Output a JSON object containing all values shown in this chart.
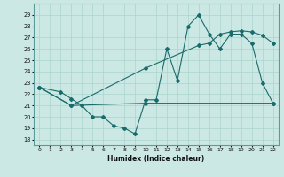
{
  "xlabel": "Humidex (Indice chaleur)",
  "xlim": [
    -0.5,
    22.5
  ],
  "ylim": [
    17.5,
    30
  ],
  "yticks": [
    18,
    19,
    20,
    21,
    22,
    23,
    24,
    25,
    26,
    27,
    28,
    29
  ],
  "xticks": [
    0,
    1,
    2,
    3,
    4,
    5,
    6,
    7,
    8,
    9,
    10,
    11,
    12,
    13,
    14,
    15,
    16,
    17,
    18,
    19,
    20,
    21,
    22
  ],
  "bg_color": "#cce8e4",
  "grid_color": "#aad4ce",
  "line_color": "#1a6b6b",
  "line1_x": [
    0,
    2,
    3,
    4,
    5,
    6,
    7,
    8,
    9,
    10,
    11,
    12,
    13,
    14,
    15,
    16,
    17,
    18,
    19,
    20,
    21,
    22
  ],
  "line1_y": [
    22.6,
    22.2,
    21.6,
    21.0,
    20.0,
    20.0,
    19.2,
    19.0,
    18.5,
    21.5,
    21.5,
    26.0,
    23.2,
    28.0,
    29.0,
    27.3,
    26.0,
    27.3,
    27.3,
    26.5,
    23.0,
    21.2
  ],
  "line2_x": [
    0,
    3,
    10,
    22
  ],
  "line2_y": [
    22.6,
    21.0,
    21.2,
    21.2
  ],
  "line3_x": [
    0,
    3,
    10,
    15,
    16,
    17,
    18,
    19,
    20,
    21,
    22
  ],
  "line3_y": [
    22.6,
    21.0,
    24.3,
    26.3,
    26.5,
    27.3,
    27.5,
    27.6,
    27.5,
    27.2,
    26.5
  ]
}
